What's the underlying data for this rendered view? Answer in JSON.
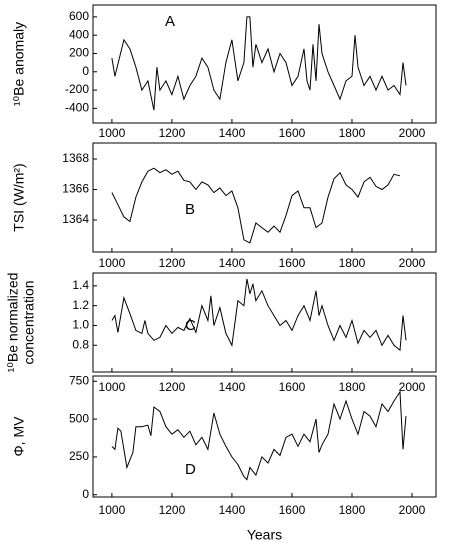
{
  "chart_data": [
    {
      "type": "line",
      "annotation": "A",
      "ylabel": [
        "¹⁰Be anomaly"
      ],
      "xlim": [
        937,
        2080
      ],
      "xticks": [
        1000,
        1200,
        1400,
        1600,
        1800,
        2000
      ],
      "ylim": [
        -560,
        730
      ],
      "yticks": [
        -400,
        -200,
        0,
        200,
        400,
        600
      ],
      "series": [
        {
          "color": "#000000",
          "x": [
            1000,
            1010,
            1040,
            1060,
            1080,
            1100,
            1120,
            1140,
            1150,
            1160,
            1180,
            1200,
            1220,
            1240,
            1260,
            1280,
            1300,
            1320,
            1340,
            1360,
            1380,
            1400,
            1420,
            1440,
            1450,
            1460,
            1470,
            1480,
            1500,
            1520,
            1540,
            1560,
            1580,
            1600,
            1620,
            1640,
            1650,
            1660,
            1670,
            1680,
            1690,
            1700,
            1720,
            1740,
            1760,
            1780,
            1800,
            1810,
            1820,
            1840,
            1860,
            1880,
            1900,
            1920,
            1940,
            1960,
            1970,
            1980
          ],
          "values": [
            150,
            -50,
            350,
            250,
            50,
            -200,
            -100,
            -420,
            50,
            -200,
            -100,
            -250,
            -50,
            -300,
            -150,
            -50,
            150,
            50,
            -200,
            -300,
            100,
            350,
            -100,
            100,
            600,
            600,
            50,
            300,
            100,
            250,
            0,
            200,
            100,
            -150,
            -50,
            250,
            -100,
            -200,
            300,
            -100,
            520,
            200,
            0,
            -150,
            -300,
            -100,
            -50,
            400,
            50,
            -150,
            -50,
            -200,
            -50,
            -200,
            -150,
            -250,
            100,
            -150
          ]
        }
      ]
    },
    {
      "type": "line",
      "annotation": "B",
      "ylabel": [
        "TSI (W/m²)"
      ],
      "xlim": [
        937,
        2080
      ],
      "xticks": [
        1000,
        1200,
        1400,
        1600,
        1800,
        2000
      ],
      "ylim": [
        1361.9,
        1369.05
      ],
      "yticks": [
        1364,
        1366,
        1368
      ],
      "series": [
        {
          "color": "#000000",
          "x": [
            1000,
            1020,
            1040,
            1060,
            1080,
            1100,
            1120,
            1140,
            1160,
            1180,
            1200,
            1220,
            1240,
            1260,
            1280,
            1300,
            1320,
            1340,
            1360,
            1380,
            1400,
            1420,
            1440,
            1460,
            1480,
            1500,
            1520,
            1540,
            1560,
            1580,
            1600,
            1620,
            1640,
            1660,
            1680,
            1700,
            1720,
            1740,
            1760,
            1780,
            1800,
            1820,
            1840,
            1860,
            1880,
            1900,
            1920,
            1940,
            1960
          ],
          "values": [
            1365.8,
            1365,
            1364.2,
            1363.9,
            1365.5,
            1366.5,
            1367.2,
            1367.4,
            1367.1,
            1367.3,
            1367,
            1367.2,
            1366.6,
            1366.5,
            1366,
            1366.5,
            1366.3,
            1365.8,
            1366.1,
            1365.6,
            1365.9,
            1364.8,
            1362.7,
            1362.5,
            1363.8,
            1363.5,
            1363.2,
            1363.6,
            1363.2,
            1364.3,
            1365.6,
            1365.9,
            1364.8,
            1364.8,
            1363.5,
            1363.8,
            1365.5,
            1366.7,
            1367.1,
            1366.3,
            1366,
            1365.5,
            1366.5,
            1366.8,
            1366.2,
            1366,
            1366.3,
            1367,
            1366.9
          ]
        }
      ]
    },
    {
      "type": "line",
      "annotation": "C",
      "ylabel": [
        "¹⁰Be normalized",
        "concentration"
      ],
      "xlim": [
        937,
        2080
      ],
      "xticks": [
        1000,
        1200,
        1400,
        1600,
        1800,
        2000
      ],
      "ylim": [
        0.53,
        1.53
      ],
      "yticks": [
        0.8,
        {
          "value": 1,
          "label": "1.0"
        },
        1.2,
        1.4
      ],
      "series": [
        {
          "color": "#000000",
          "x": [
            1000,
            1010,
            1020,
            1040,
            1060,
            1080,
            1100,
            1110,
            1120,
            1140,
            1160,
            1180,
            1200,
            1220,
            1240,
            1260,
            1280,
            1300,
            1320,
            1330,
            1340,
            1360,
            1380,
            1400,
            1420,
            1440,
            1450,
            1460,
            1470,
            1480,
            1500,
            1520,
            1540,
            1560,
            1580,
            1600,
            1620,
            1640,
            1660,
            1680,
            1690,
            1700,
            1720,
            1740,
            1760,
            1780,
            1800,
            1820,
            1840,
            1860,
            1880,
            1900,
            1920,
            1940,
            1960,
            1970,
            1980
          ],
          "values": [
            1.05,
            1.1,
            0.93,
            1.28,
            1.12,
            0.95,
            0.92,
            1.05,
            0.92,
            0.85,
            0.88,
            1,
            0.92,
            0.98,
            0.95,
            1.07,
            0.93,
            1.2,
            1.05,
            1.3,
            1,
            1.18,
            0.92,
            0.8,
            1.25,
            1.2,
            1.47,
            1.32,
            1.42,
            1.25,
            1.35,
            1.2,
            1.1,
            1,
            1.05,
            0.95,
            1.1,
            1.2,
            1.05,
            1.35,
            1.1,
            1.2,
            1,
            0.85,
            1,
            0.88,
            1.05,
            0.82,
            0.95,
            0.88,
            0.95,
            0.8,
            0.9,
            0.8,
            0.75,
            1.1,
            0.85
          ]
        }
      ]
    },
    {
      "type": "line",
      "annotation": "D",
      "ylabel": [
        "Φ, MV"
      ],
      "xlabel": "Years",
      "xlim": [
        937,
        2080
      ],
      "xticks": [
        1000,
        1200,
        1400,
        1600,
        1800,
        2000
      ],
      "ylim": [
        -15,
        785
      ],
      "yticks": [
        0,
        250,
        500,
        750
      ],
      "series": [
        {
          "color": "#000000",
          "x": [
            1000,
            1010,
            1020,
            1030,
            1050,
            1070,
            1080,
            1100,
            1120,
            1130,
            1140,
            1160,
            1180,
            1200,
            1220,
            1240,
            1260,
            1280,
            1300,
            1320,
            1340,
            1360,
            1380,
            1400,
            1420,
            1440,
            1450,
            1460,
            1480,
            1500,
            1520,
            1540,
            1560,
            1580,
            1600,
            1620,
            1640,
            1660,
            1680,
            1690,
            1700,
            1720,
            1740,
            1760,
            1780,
            1800,
            1820,
            1840,
            1860,
            1880,
            1900,
            1920,
            1940,
            1960,
            1970,
            1980
          ],
          "values": [
            320,
            300,
            440,
            420,
            180,
            280,
            450,
            450,
            460,
            390,
            580,
            550,
            450,
            400,
            430,
            380,
            420,
            330,
            380,
            300,
            540,
            400,
            320,
            250,
            200,
            120,
            100,
            180,
            130,
            250,
            210,
            300,
            260,
            380,
            400,
            320,
            400,
            350,
            500,
            280,
            330,
            400,
            600,
            500,
            620,
            500,
            400,
            550,
            520,
            450,
            600,
            550,
            620,
            680,
            300,
            520
          ]
        }
      ]
    }
  ]
}
